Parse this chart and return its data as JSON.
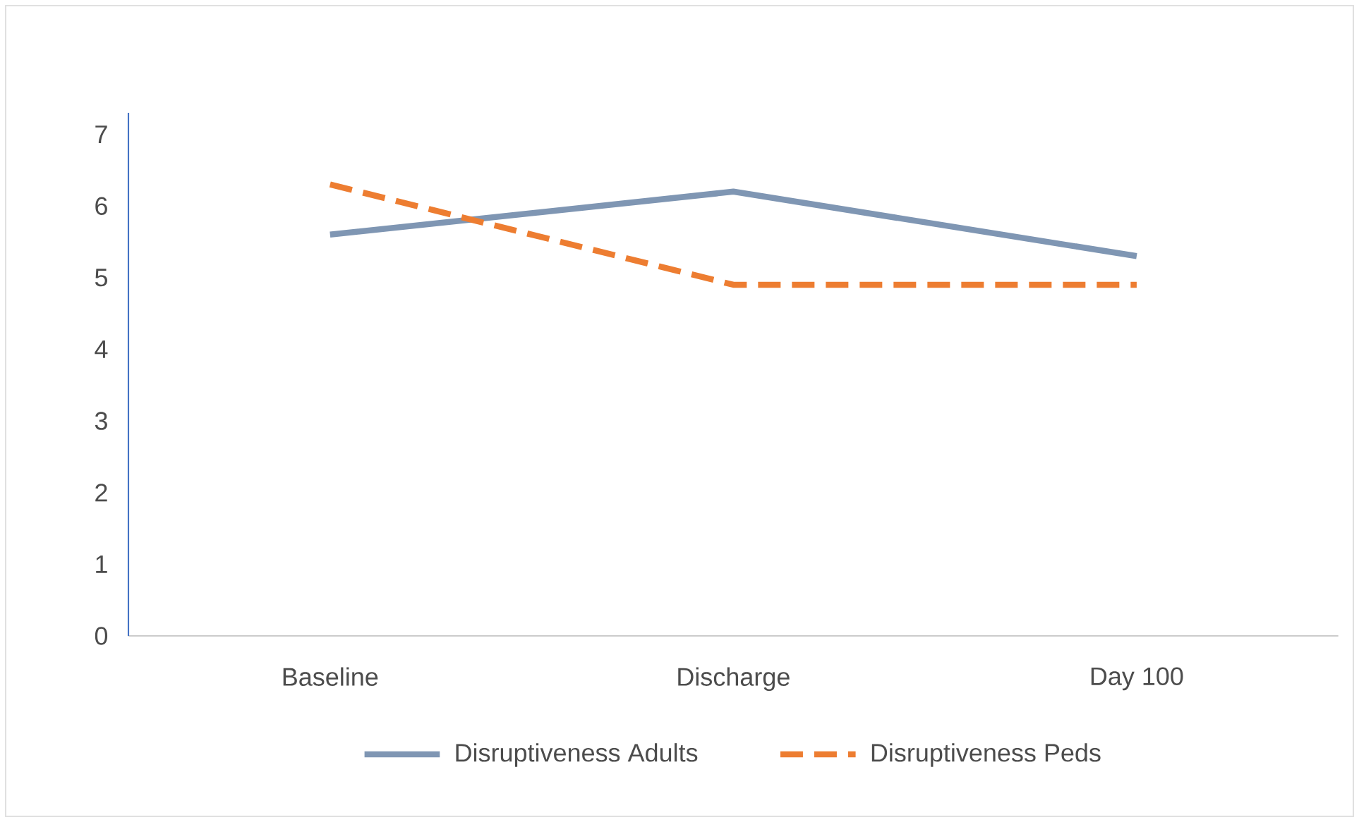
{
  "chart_data": {
    "type": "line",
    "categories": [
      "Baseline",
      "Discharge",
      "Day 100"
    ],
    "series": [
      {
        "name": "Disruptiveness Adults",
        "color": "#7f96b3",
        "values": [
          5.6,
          6.2,
          5.3
        ],
        "line_style": "solid"
      },
      {
        "name": "Disruptiveness Peds",
        "color": "#ed7d31",
        "values": [
          6.3,
          4.9,
          4.9
        ],
        "line_style": "dashed"
      }
    ],
    "ylim": [
      0,
      7.3
    ],
    "yticks": [
      0,
      1,
      2,
      3,
      4,
      5,
      6,
      7
    ],
    "grid": false,
    "legend": "bottom",
    "marker": "none"
  }
}
